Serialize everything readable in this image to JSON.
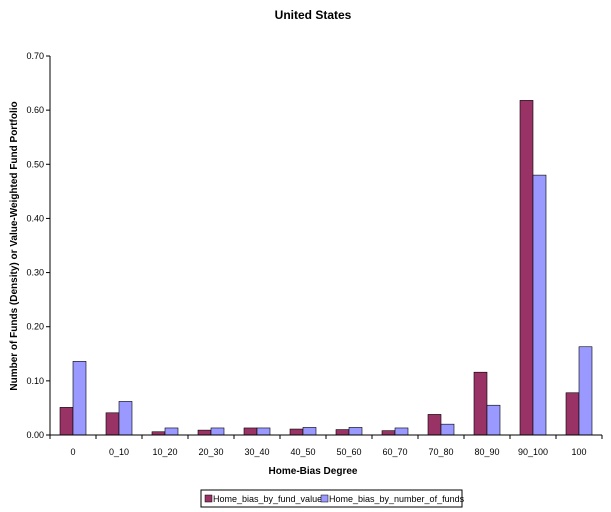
{
  "chart_data": {
    "type": "bar",
    "title": "United States",
    "xlabel": "Home-Bias Degree",
    "ylabel": "Number of Funds (Density) or Value-Weighted Fund Portfolio",
    "categories": [
      "0",
      "0_10",
      "10_20",
      "20_30",
      "30_40",
      "40_50",
      "50_60",
      "60_70",
      "70_80",
      "80_90",
      "90_100",
      "100"
    ],
    "ylim": [
      0,
      0.7
    ],
    "yticks": [
      "0.00",
      "0.10",
      "0.20",
      "0.30",
      "0.40",
      "0.50",
      "0.60",
      "0.70"
    ],
    "grid": false,
    "legend_position": "bottom",
    "series": [
      {
        "name": "Home_bias_by_fund_value",
        "color": "#993366",
        "values": [
          0.051,
          0.041,
          0.006,
          0.009,
          0.013,
          0.011,
          0.01,
          0.008,
          0.038,
          0.116,
          0.618,
          0.078
        ]
      },
      {
        "name": "Home_bias_by_number_of_funds",
        "color": "#9999FF",
        "values": [
          0.136,
          0.062,
          0.013,
          0.013,
          0.013,
          0.014,
          0.014,
          0.013,
          0.02,
          0.055,
          0.48,
          0.163
        ]
      }
    ]
  }
}
